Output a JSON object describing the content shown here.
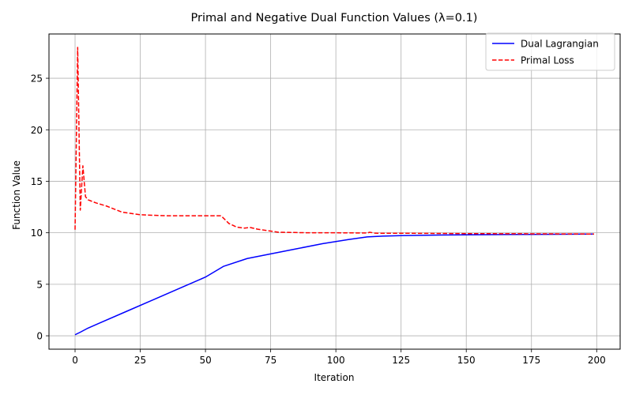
{
  "chart_data": {
    "type": "line",
    "title": "Primal and Negative Dual Function Values (λ=0.1)",
    "xlabel": "Iteration",
    "ylabel": "Function Value",
    "xlim": [
      -10,
      209
    ],
    "ylim": [
      -1.3,
      29.3
    ],
    "xticks": [
      "0",
      "25",
      "50",
      "75",
      "100",
      "125",
      "150",
      "175",
      "200"
    ],
    "yticks": [
      "0",
      "5",
      "10",
      "15",
      "20",
      "25"
    ],
    "grid": true,
    "legend_position": "top-right",
    "series": [
      {
        "name": "Dual Lagrangian",
        "color": "#0000ff",
        "dash": "solid",
        "points": [
          [
            0,
            0.1
          ],
          [
            2,
            0.35
          ],
          [
            5,
            0.75
          ],
          [
            10,
            1.3
          ],
          [
            20,
            2.4
          ],
          [
            30,
            3.5
          ],
          [
            40,
            4.6
          ],
          [
            50,
            5.7
          ],
          [
            57,
            6.75
          ],
          [
            66,
            7.5
          ],
          [
            75,
            7.95
          ],
          [
            85,
            8.45
          ],
          [
            95,
            8.95
          ],
          [
            105,
            9.35
          ],
          [
            112,
            9.6
          ],
          [
            118,
            9.68
          ],
          [
            125,
            9.72
          ],
          [
            140,
            9.78
          ],
          [
            160,
            9.82
          ],
          [
            180,
            9.85
          ],
          [
            199,
            9.88
          ]
        ]
      },
      {
        "name": "Primal Loss",
        "color": "#ff0000",
        "dash": "dashed",
        "points": [
          [
            0,
            10.3
          ],
          [
            1,
            28.0
          ],
          [
            2,
            12.2
          ],
          [
            3,
            16.5
          ],
          [
            4,
            13.5
          ],
          [
            5,
            13.2
          ],
          [
            8,
            12.9
          ],
          [
            12,
            12.6
          ],
          [
            18,
            12.0
          ],
          [
            25,
            11.75
          ],
          [
            35,
            11.65
          ],
          [
            45,
            11.65
          ],
          [
            56,
            11.65
          ],
          [
            59,
            10.9
          ],
          [
            62,
            10.55
          ],
          [
            65,
            10.45
          ],
          [
            67,
            10.52
          ],
          [
            70,
            10.35
          ],
          [
            78,
            10.05
          ],
          [
            90,
            10.0
          ],
          [
            100,
            10.0
          ],
          [
            112,
            9.98
          ],
          [
            113,
            10.05
          ],
          [
            115,
            9.96
          ],
          [
            130,
            9.95
          ],
          [
            150,
            9.92
          ],
          [
            175,
            9.9
          ],
          [
            199,
            9.88
          ]
        ]
      }
    ]
  }
}
